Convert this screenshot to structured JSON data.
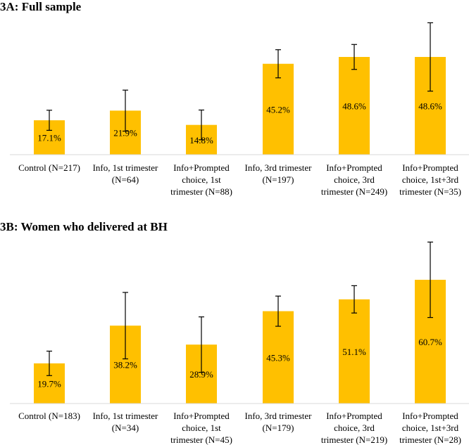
{
  "colors": {
    "bar": "#FFC000"
  },
  "chart_data": [
    {
      "type": "bar",
      "title": "3A: Full sample",
      "categories": [
        [
          "Control (N=217)"
        ],
        [
          "Info, 1st trimester",
          "(N=64)"
        ],
        [
          "Info+Prompted",
          "choice, 1st",
          "trimester (N=88)"
        ],
        [
          "Info, 3rd trimester",
          "(N=197)"
        ],
        [
          "Info+Prompted",
          "choice, 3rd",
          "trimester (N=249)"
        ],
        [
          "Info+Prompted",
          "choice, 1st+3rd",
          "trimester (N=35)"
        ]
      ],
      "values": [
        17.1,
        21.9,
        14.8,
        45.2,
        48.6,
        48.6
      ],
      "labels": [
        "17.1%",
        "21.9%",
        "14.8%",
        "45.2%",
        "48.6%",
        "48.6%"
      ],
      "error_low": [
        12.1,
        11.7,
        7.4,
        38.2,
        42.4,
        31.6
      ],
      "error_high": [
        22.1,
        32.1,
        22.2,
        52.2,
        54.8,
        65.6
      ],
      "ylim": [
        0,
        70
      ],
      "xlabel": "",
      "ylabel": "",
      "grid": false
    },
    {
      "type": "bar",
      "title": "3B: Women who delivered at BH",
      "categories": [
        [
          "Control (N=183)"
        ],
        [
          "Info, 1st trimester",
          "(N=34)"
        ],
        [
          "Info+Prompted",
          "choice, 1st",
          "trimester (N=45)"
        ],
        [
          "Info, 3rd trimester",
          "(N=179)"
        ],
        [
          "Info+Prompted",
          "choice, 3rd",
          "trimester (N=219)"
        ],
        [
          "Info+Prompted",
          "choice, 1st+3rd",
          "trimester (N=28)"
        ]
      ],
      "values": [
        19.7,
        38.2,
        28.9,
        45.3,
        51.1,
        60.7
      ],
      "labels": [
        "19.7%",
        "38.2%",
        "28.9%",
        "45.3%",
        "51.1%",
        "60.7%"
      ],
      "error_low": [
        13.7,
        21.9,
        15.3,
        37.9,
        44.4,
        42.2
      ],
      "error_high": [
        25.7,
        54.5,
        42.5,
        52.7,
        57.8,
        79.2
      ],
      "ylim": [
        0,
        80
      ],
      "xlabel": "",
      "ylabel": "",
      "grid": false
    }
  ]
}
